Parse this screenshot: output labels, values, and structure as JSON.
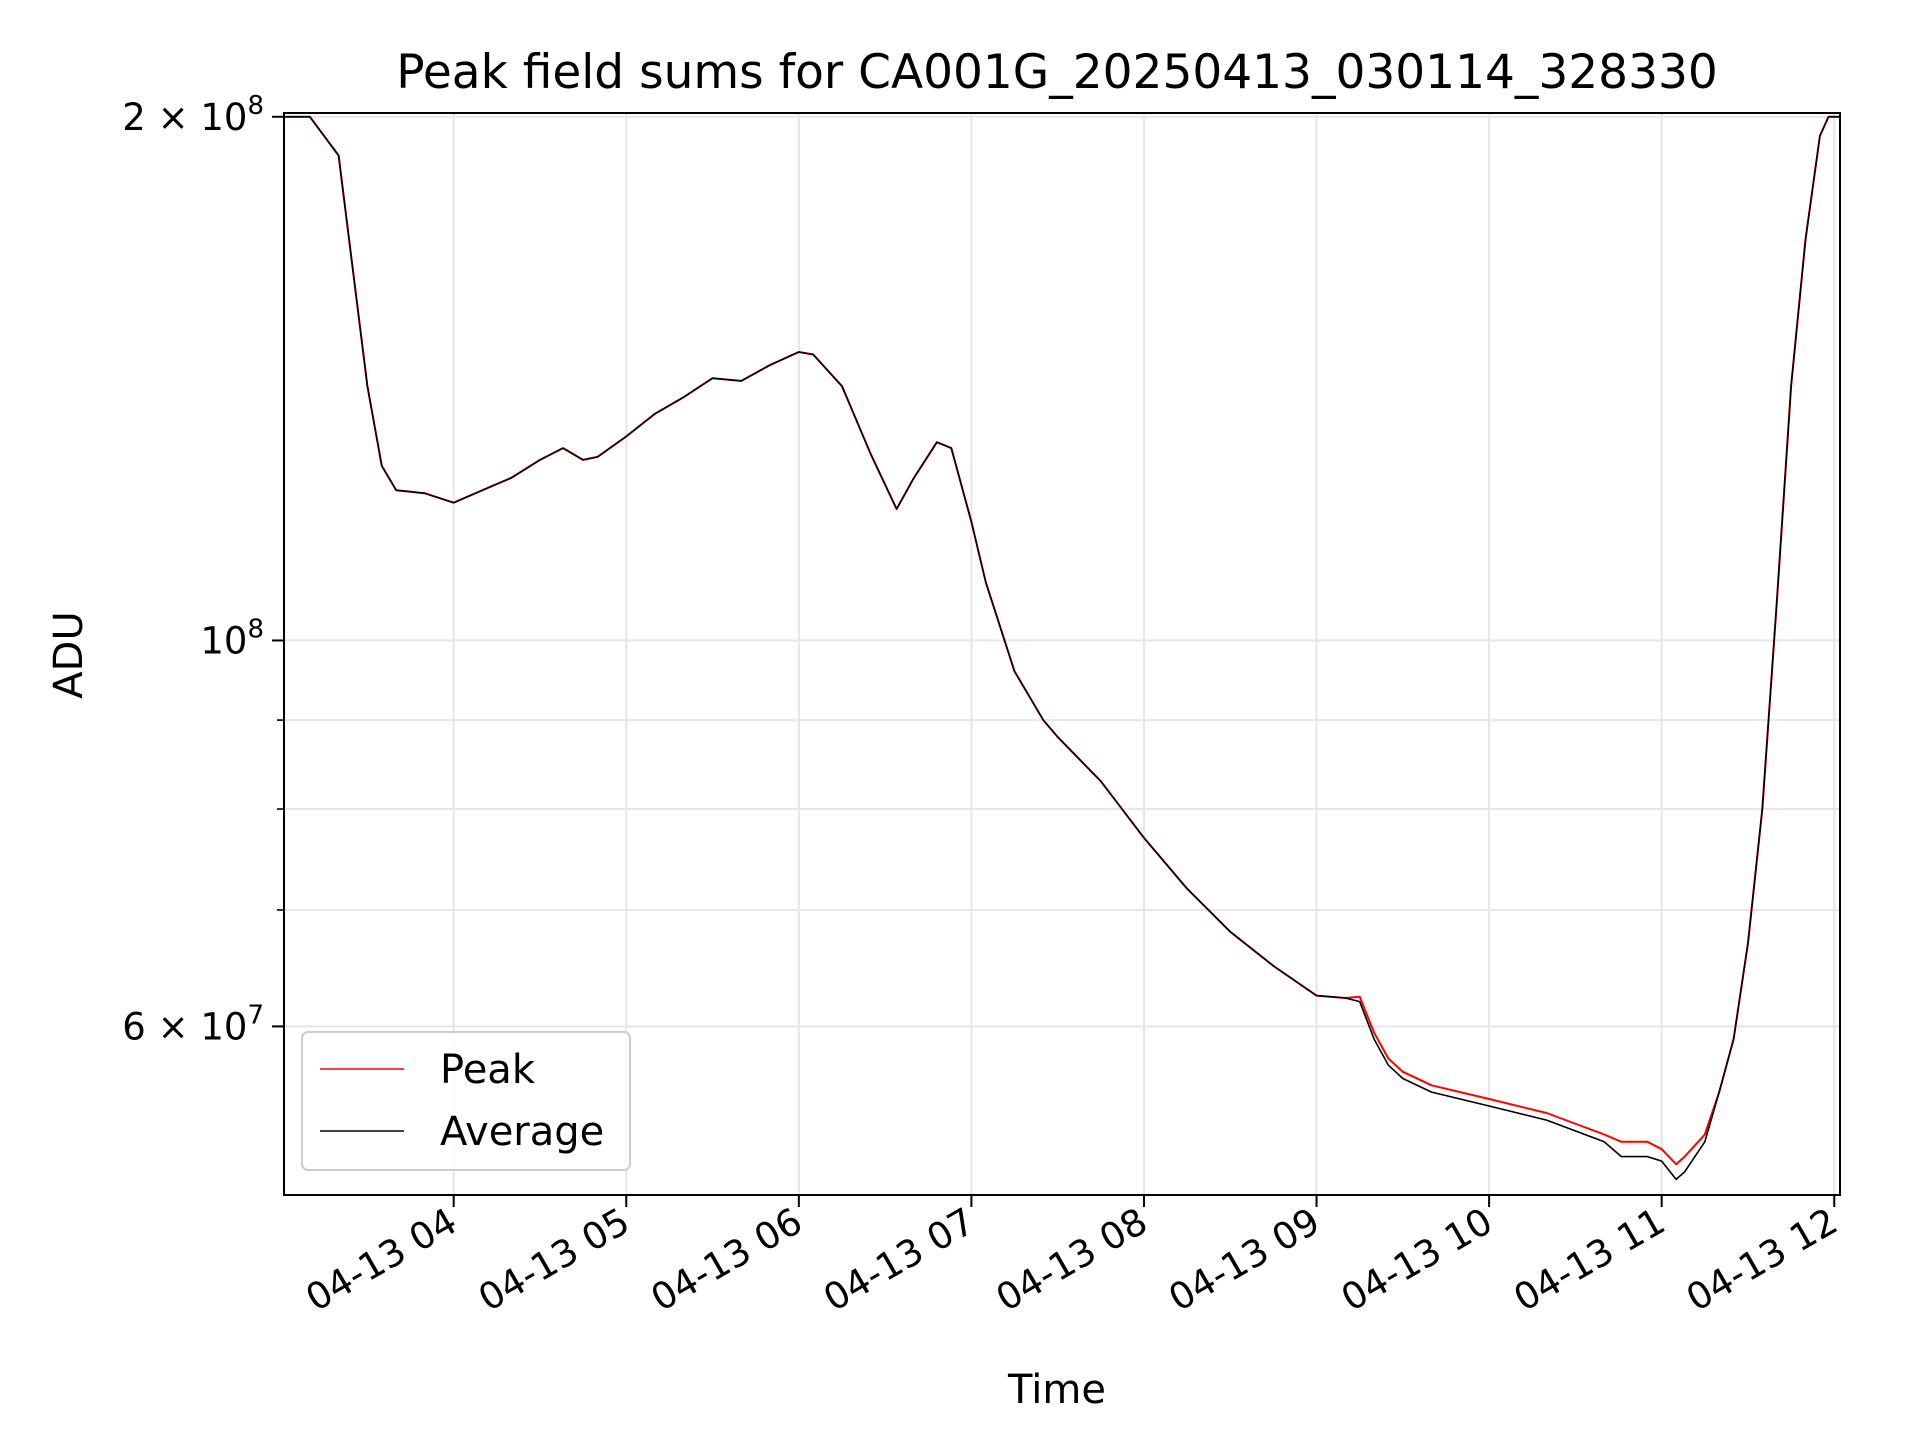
{
  "chart_data": {
    "type": "line",
    "title": "Peak field sums for CA001G_20250413_030114_328330",
    "xlabel": "Time",
    "ylabel": "ADU",
    "yscale": "log",
    "xlim": [
      "04-13 03:01",
      "04-13 12:02"
    ],
    "ylim": [
      48000000,
      201000000
    ],
    "grid": true,
    "legend_position": "lower-left",
    "x_ticks": [
      "04-13 04",
      "04-13 05",
      "04-13 06",
      "04-13 07",
      "04-13 08",
      "04-13 09",
      "04-13 10",
      "04-13 11",
      "04-13 12"
    ],
    "y_tick_labels": [
      {
        "value": 200000000,
        "mantissa": "2",
        "exponent": "8"
      },
      {
        "value": 100000000,
        "mantissa": "",
        "exponent": "8"
      },
      {
        "value": 60000000,
        "mantissa": "6",
        "exponent": "7"
      }
    ],
    "series": [
      {
        "name": "Peak",
        "color": "#ff0000",
        "x": [
          "04-13 03:01",
          "04-13 03:10",
          "04-13 03:20",
          "04-13 03:30",
          "04-13 03:35",
          "04-13 03:40",
          "04-13 03:50",
          "04-13 04:00",
          "04-13 04:05",
          "04-13 04:10",
          "04-13 04:20",
          "04-13 04:30",
          "04-13 04:38",
          "04-13 04:45",
          "04-13 04:50",
          "04-13 05:00",
          "04-13 05:10",
          "04-13 05:20",
          "04-13 05:30",
          "04-13 05:40",
          "04-13 05:50",
          "04-13 06:00",
          "04-13 06:05",
          "04-13 06:15",
          "04-13 06:25",
          "04-13 06:34",
          "04-13 06:40",
          "04-13 06:48",
          "04-13 06:53",
          "04-13 07:00",
          "04-13 07:05",
          "04-13 07:15",
          "04-13 07:25",
          "04-13 07:30",
          "04-13 07:45",
          "04-13 08:00",
          "04-13 08:15",
          "04-13 08:30",
          "04-13 08:45",
          "04-13 09:00",
          "04-13 09:10",
          "04-13 09:15",
          "04-13 09:20",
          "04-13 09:25",
          "04-13 09:30",
          "04-13 09:40",
          "04-13 10:00",
          "04-13 10:20",
          "04-13 10:40",
          "04-13 10:46",
          "04-13 10:55",
          "04-13 11:00",
          "04-13 11:05",
          "04-13 11:08",
          "04-13 11:15",
          "04-13 11:20",
          "04-13 11:25",
          "04-13 11:30",
          "04-13 11:35",
          "04-13 11:40",
          "04-13 11:45",
          "04-13 11:50",
          "04-13 11:55",
          "04-13 11:58",
          "04-13 12:02"
        ],
        "values": [
          200000000,
          200000000,
          190000000,
          140000000,
          126000000,
          122000000,
          121500000,
          120000000,
          121000000,
          122000000,
          124000000,
          127000000,
          129000000,
          127000000,
          127500000,
          131000000,
          135000000,
          138000000,
          141500000,
          141000000,
          144000000,
          146500000,
          146000000,
          140000000,
          128000000,
          119000000,
          124000000,
          130000000,
          129000000,
          117000000,
          108000000,
          96000000,
          90000000,
          88000000,
          83000000,
          77000000,
          72000000,
          68000000,
          65000000,
          62500000,
          62300000,
          62400000,
          59500000,
          57500000,
          56500000,
          55500000,
          54500000,
          53500000,
          52000000,
          51500000,
          51500000,
          51000000,
          50000000,
          50500000,
          52000000,
          55000000,
          59000000,
          67000000,
          80000000,
          105000000,
          140000000,
          170000000,
          195000000,
          200000000,
          200000000
        ]
      },
      {
        "name": "Average",
        "color": "#000000",
        "x": [
          "04-13 03:01",
          "04-13 03:10",
          "04-13 03:20",
          "04-13 03:30",
          "04-13 03:35",
          "04-13 03:40",
          "04-13 03:50",
          "04-13 04:00",
          "04-13 04:05",
          "04-13 04:10",
          "04-13 04:20",
          "04-13 04:30",
          "04-13 04:38",
          "04-13 04:45",
          "04-13 04:50",
          "04-13 05:00",
          "04-13 05:10",
          "04-13 05:20",
          "04-13 05:30",
          "04-13 05:40",
          "04-13 05:50",
          "04-13 06:00",
          "04-13 06:05",
          "04-13 06:15",
          "04-13 06:25",
          "04-13 06:34",
          "04-13 06:40",
          "04-13 06:48",
          "04-13 06:53",
          "04-13 07:00",
          "04-13 07:05",
          "04-13 07:15",
          "04-13 07:25",
          "04-13 07:30",
          "04-13 07:45",
          "04-13 08:00",
          "04-13 08:15",
          "04-13 08:30",
          "04-13 08:45",
          "04-13 09:00",
          "04-13 09:10",
          "04-13 09:15",
          "04-13 09:20",
          "04-13 09:25",
          "04-13 09:30",
          "04-13 09:40",
          "04-13 10:00",
          "04-13 10:20",
          "04-13 10:40",
          "04-13 10:46",
          "04-13 10:55",
          "04-13 11:00",
          "04-13 11:05",
          "04-13 11:08",
          "04-13 11:15",
          "04-13 11:20",
          "04-13 11:25",
          "04-13 11:30",
          "04-13 11:35",
          "04-13 11:40",
          "04-13 11:45",
          "04-13 11:50",
          "04-13 11:55",
          "04-13 11:58",
          "04-13 12:02"
        ],
        "values": [
          200000000,
          200000000,
          190000000,
          140000000,
          126000000,
          122000000,
          121500000,
          120000000,
          121000000,
          122000000,
          124000000,
          127000000,
          129000000,
          127000000,
          127500000,
          131000000,
          135000000,
          138000000,
          141500000,
          141000000,
          144000000,
          146500000,
          146000000,
          140000000,
          128000000,
          119000000,
          124000000,
          130000000,
          129000000,
          117000000,
          108000000,
          96000000,
          90000000,
          88000000,
          83000000,
          77000000,
          72000000,
          68000000,
          65000000,
          62500000,
          62300000,
          62000000,
          59000000,
          57000000,
          56000000,
          55000000,
          54000000,
          53000000,
          51500000,
          50500000,
          50500000,
          50200000,
          49000000,
          49500000,
          51500000,
          55000000,
          59000000,
          67000000,
          80000000,
          105000000,
          140000000,
          170000000,
          195000000,
          200000000,
          200000000
        ]
      }
    ]
  }
}
